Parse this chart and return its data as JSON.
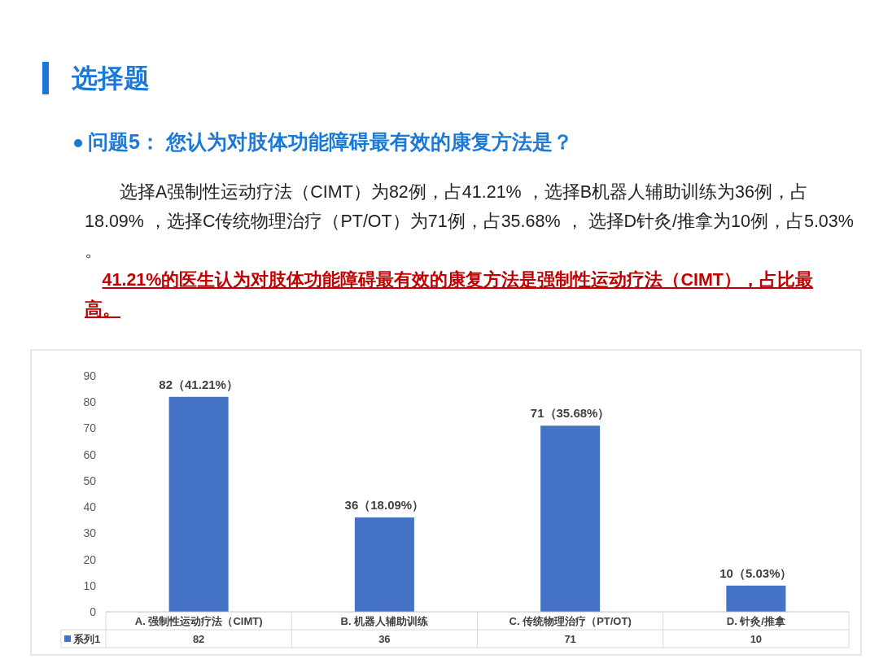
{
  "chart_data": {
    "type": "bar",
    "title": "选择题",
    "subtitle": "问题5： 您认为对肢体功能障碍最有效的康复方法是？",
    "annotations": [
      "选择A强制性运动疗法（CIMT）为82例，占41.21% ，选择B机器人辅助训练为36例，占18.09% ，选择C传统物理治疗（PT/OT）为71例，占35.68% ， 选择D针灸/推拿为10例，占5.03% 。",
      "41.21%的医生认为对肢体功能障碍最有效的康复方法是强制性运动疗法（CIMT），占比最高。",
      "82",
      "36",
      "71",
      "10"
    ],
    "categories": [
      "A. 强制性运动疗法（CIMT)",
      "B. 机器人辅助训练",
      "C. 传统物理治疗（PT/OT)",
      "D. 针灸/推拿"
    ],
    "series": [
      {
        "name": "系列1",
        "color": "#4472c4",
        "values": [
          82,
          36,
          71,
          10
        ],
        "value_labels": [
          "82（41.21%）",
          "36（18.09%）",
          "71（35.68%）",
          "10（5.03%）"
        ]
      }
    ],
    "ylim": [
      0,
      90
    ],
    "yticks": [
      0,
      10,
      20,
      30,
      40,
      50,
      60,
      70,
      80,
      90
    ],
    "grid": false,
    "legend": "bottom"
  }
}
